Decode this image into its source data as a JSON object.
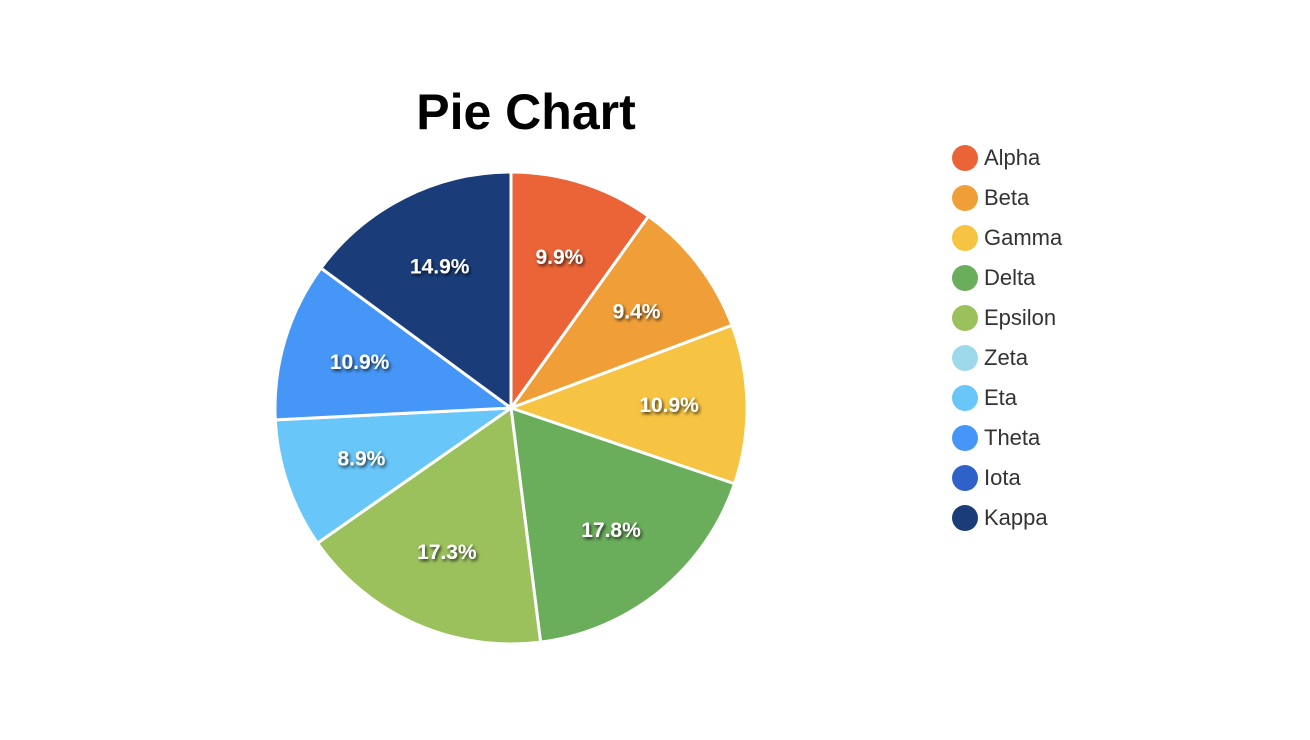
{
  "chart_data": {
    "type": "pie",
    "title": "Pie Chart",
    "categories": [
      "Alpha",
      "Beta",
      "Gamma",
      "Delta",
      "Epsilon",
      "Zeta",
      "Eta",
      "Theta",
      "Iota",
      "Kappa"
    ],
    "values": [
      9.9,
      9.4,
      10.9,
      17.8,
      17.3,
      0,
      8.9,
      10.9,
      0,
      14.9
    ],
    "labels": [
      "9.9%",
      "9.4%",
      "10.9%",
      "17.8%",
      "17.3%",
      "",
      "8.9%",
      "10.9%",
      "",
      "14.9%"
    ],
    "unit": "%",
    "colors": [
      "#EB6437",
      "#F09F38",
      "#F6C342",
      "#6AAE5B",
      "#9BC15D",
      "#9ED9EB",
      "#68C6F9",
      "#4596F6",
      "#2E62C9",
      "#1A3D7A"
    ],
    "legend_position": "right",
    "start_angle": "top",
    "direction": "clockwise"
  }
}
